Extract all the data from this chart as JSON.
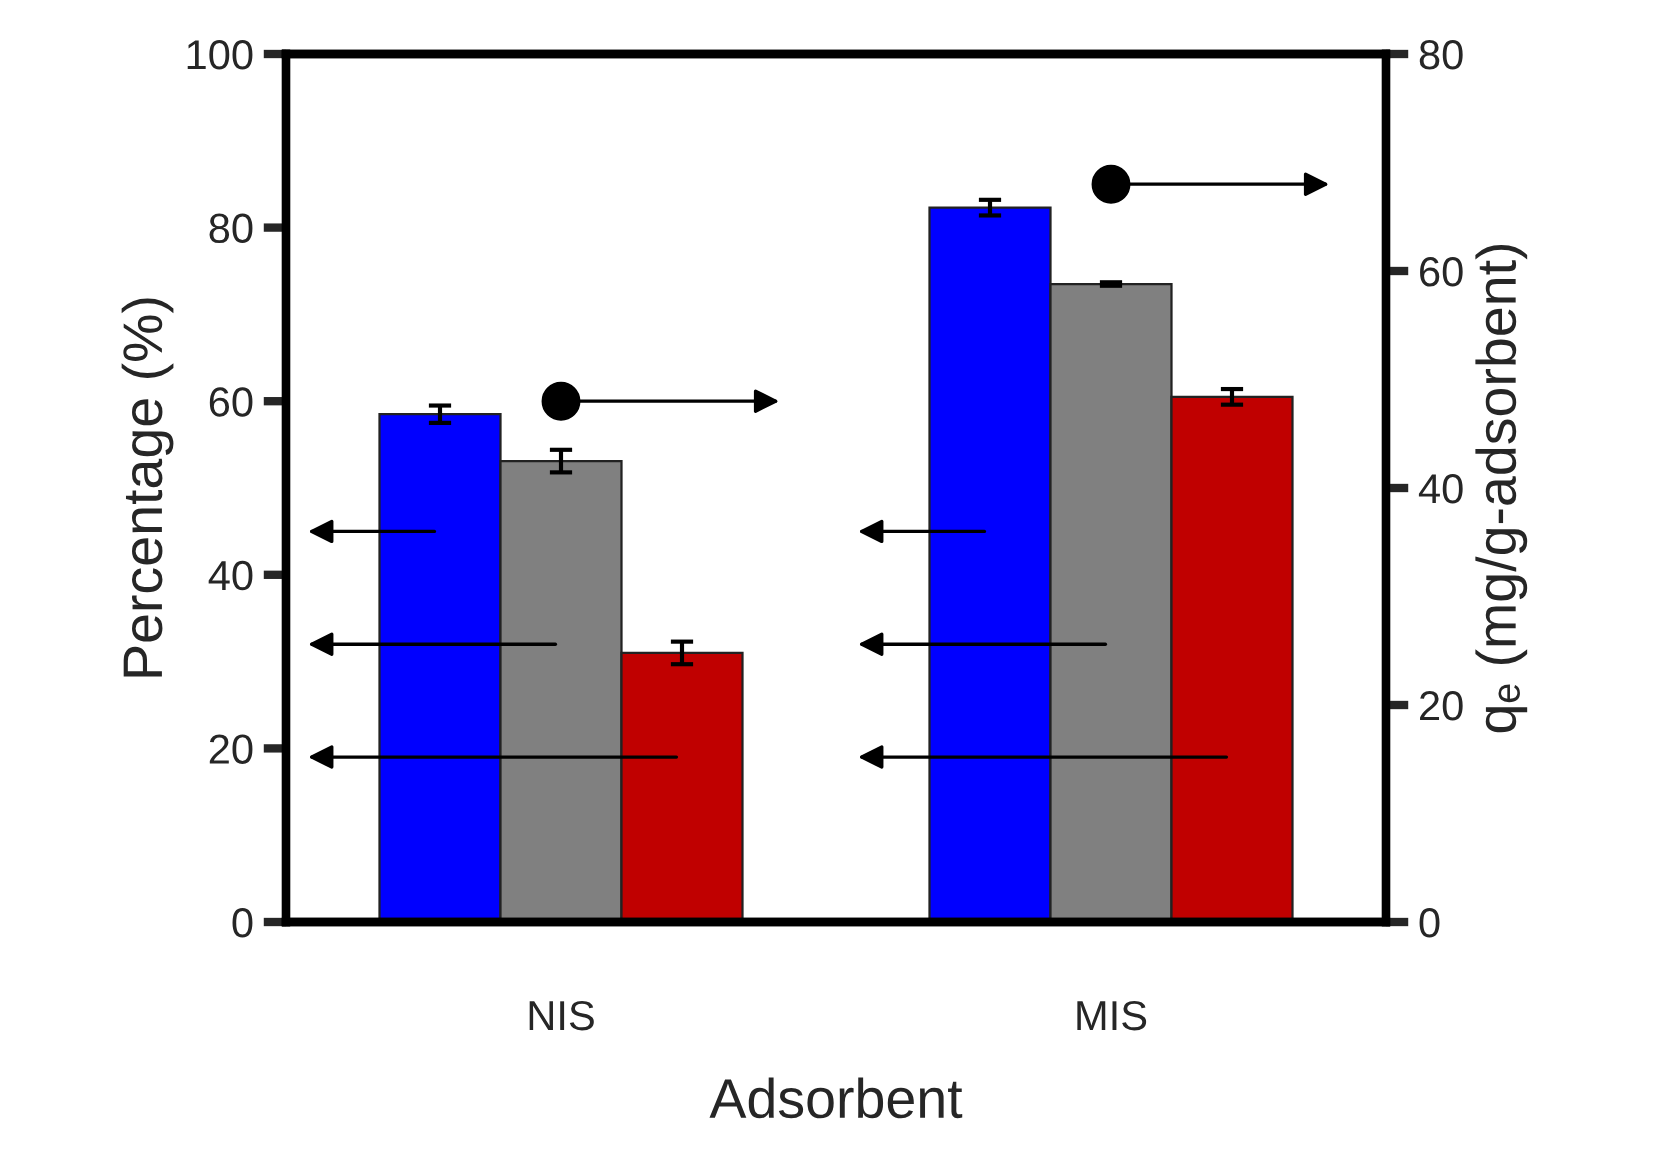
{
  "chart_data": {
    "type": "bar",
    "xlabel": "Adsorbent",
    "ylabel": "Percentage (%)",
    "y2label": "qₑ (mg/g-adsorbent)",
    "categories": [
      "NIS",
      "MIS"
    ],
    "series": [
      {
        "color": "#0000ff",
        "values": [
          58.5,
          82.3
        ],
        "errors": [
          1.0,
          0.9
        ]
      },
      {
        "color": "#808080",
        "values": [
          53.1,
          73.5
        ],
        "errors": [
          1.3,
          0.2
        ]
      },
      {
        "color": "#c00000",
        "values": [
          31.0,
          60.5
        ],
        "errors": [
          1.3,
          0.9
        ]
      }
    ],
    "ylim": [
      0,
      100
    ],
    "yticks": [
      0,
      20,
      40,
      60,
      80,
      100
    ],
    "y2lim": [
      0,
      80
    ],
    "y2ticks": [
      0,
      20,
      40,
      60,
      80
    ],
    "grid": false
  }
}
